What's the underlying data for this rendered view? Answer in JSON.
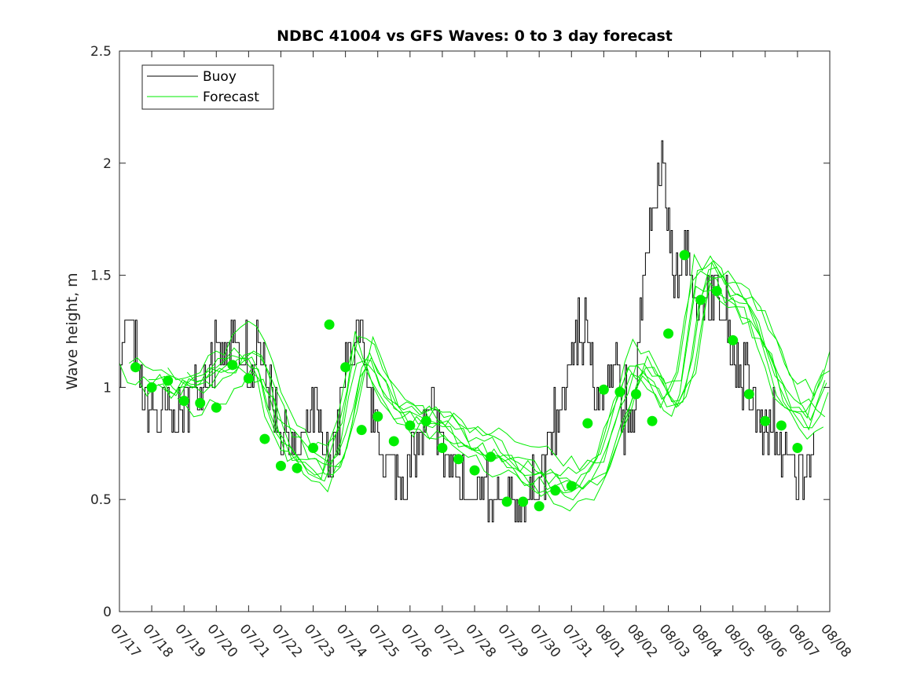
{
  "chart_data": {
    "type": "line",
    "title": "NDBC 41004 vs GFS Waves: 0 to 3 day forecast",
    "xlabel": "",
    "ylabel": "Wave height, m",
    "x_tick_labels": [
      "07/17",
      "07/18",
      "07/19",
      "07/20",
      "07/21",
      "07/22",
      "07/23",
      "07/24",
      "07/25",
      "07/26",
      "07/27",
      "07/28",
      "07/29",
      "07/30",
      "07/31",
      "08/01",
      "08/02",
      "08/03",
      "08/04",
      "08/05",
      "08/06",
      "08/07",
      "08/08"
    ],
    "xlim_days": [
      0,
      22
    ],
    "ylim": [
      0,
      2.5
    ],
    "y_ticks": [
      0,
      0.5,
      1,
      1.5,
      2,
      2.5
    ],
    "y_tick_labels": [
      "0",
      "0.5",
      "1",
      "1.5",
      "2",
      "2.5"
    ],
    "grid": false,
    "legend": {
      "placement": "top-left",
      "entries": [
        {
          "name": "Buoy",
          "color": "#000000"
        },
        {
          "name": "Forecast",
          "color": "#00ee00"
        }
      ]
    },
    "colors": {
      "buoy": "#000000",
      "forecast": "#00ee00"
    },
    "buoy_profile": {
      "x": [
        0,
        0.2,
        0.3,
        0.5,
        0.6,
        0.8,
        1.0,
        1.2,
        1.4,
        1.5,
        1.7,
        2.0,
        2.2,
        2.4,
        2.7,
        3.0,
        3.2,
        3.5,
        3.8,
        4.0,
        4.2,
        4.4,
        4.5,
        4.7,
        5.0,
        5.3,
        5.5,
        5.7,
        5.9,
        6.1,
        6.3,
        6.5,
        6.8,
        7.0,
        7.2,
        7.5,
        7.6,
        7.8,
        8.0,
        8.2,
        8.5,
        8.8,
        9.0,
        9.3,
        9.5,
        9.7,
        9.9,
        10.0,
        10.2,
        10.5,
        10.8,
        11.0,
        11.3,
        11.5,
        11.7,
        11.9,
        12.0,
        12.2,
        12.5,
        12.8,
        13.0,
        13.2,
        13.5,
        13.8,
        14.0,
        14.2,
        14.4,
        14.6,
        14.8,
        15.0,
        15.2,
        15.4,
        15.6,
        15.8,
        16.0,
        16.2,
        16.5,
        16.8,
        17.0,
        17.1,
        17.2,
        17.3,
        17.5,
        17.7,
        17.9,
        18.1,
        18.3,
        18.5,
        18.7,
        19.0,
        19.2,
        19.5,
        19.8,
        20.0,
        20.3,
        20.6,
        20.9,
        21.0,
        21.3,
        21.5
      ],
      "y": [
        1.15,
        1.25,
        1.3,
        1.2,
        1.0,
        0.95,
        0.9,
        0.85,
        0.9,
        0.9,
        0.85,
        0.9,
        0.95,
        1.0,
        1.05,
        1.1,
        1.15,
        1.2,
        1.1,
        1.05,
        1.05,
        1.2,
        1.1,
        0.95,
        0.8,
        0.75,
        0.7,
        0.75,
        0.85,
        0.9,
        0.7,
        0.65,
        0.8,
        1.1,
        1.2,
        1.2,
        1.05,
        0.9,
        0.75,
        0.7,
        0.65,
        0.6,
        0.6,
        0.75,
        0.85,
        0.9,
        0.8,
        0.7,
        0.65,
        0.6,
        0.55,
        0.55,
        0.5,
        0.45,
        0.45,
        0.45,
        0.45,
        0.45,
        0.5,
        0.55,
        0.6,
        0.65,
        0.8,
        1.0,
        1.15,
        1.2,
        1.2,
        1.1,
        1.0,
        0.95,
        1.0,
        1.1,
        0.8,
        0.85,
        1.0,
        1.5,
        1.8,
        2.05,
        1.7,
        1.55,
        1.45,
        1.5,
        1.6,
        1.55,
        1.4,
        1.3,
        1.45,
        1.4,
        1.3,
        1.2,
        1.05,
        0.95,
        0.85,
        0.8,
        0.75,
        0.7,
        0.65,
        0.6,
        0.7,
        0.8
      ]
    },
    "forecast_mean": {
      "x": [
        0,
        0.5,
        1.0,
        1.5,
        2.0,
        2.5,
        3.0,
        3.5,
        4.0,
        4.5,
        5.0,
        5.5,
        6.0,
        6.5,
        7.0,
        7.5,
        8.0,
        8.5,
        9.0,
        9.5,
        10.0,
        10.5,
        11.0,
        11.5,
        12.0,
        12.5,
        13.0,
        13.5,
        14.0,
        14.5,
        15.0,
        15.5,
        16.0,
        16.5,
        17.0,
        17.5,
        18.0,
        18.5,
        19.0,
        19.5,
        20.0,
        20.5,
        21.0,
        21.5,
        22.0
      ],
      "y": [
        1.1,
        1.05,
        1.02,
        1.02,
        1.0,
        1.0,
        1.05,
        1.1,
        1.15,
        1.05,
        0.8,
        0.72,
        0.65,
        0.62,
        0.8,
        1.2,
        1.05,
        0.9,
        0.85,
        0.86,
        0.82,
        0.8,
        0.74,
        0.72,
        0.68,
        0.64,
        0.6,
        0.58,
        0.56,
        0.58,
        0.65,
        0.9,
        1.1,
        1.05,
        0.9,
        1.0,
        1.5,
        1.5,
        1.4,
        1.35,
        1.2,
        1.0,
        0.9,
        0.85,
        1.05
      ]
    },
    "forecast_spread": [
      0,
      0.06,
      -0.05,
      0.1,
      -0.08,
      0.12,
      -0.1,
      0.03
    ],
    "forecast_run_count": 8,
    "forecast_markers": {
      "x": [
        0.5,
        1,
        1.5,
        2,
        2.5,
        3,
        3.5,
        4,
        4.5,
        5,
        5.5,
        6,
        6.5,
        7,
        7.5,
        8,
        8.5,
        9,
        9.5,
        10,
        10.5,
        11,
        11.5,
        12,
        12.5,
        13,
        13.5,
        14,
        14.5,
        15,
        15.5,
        16,
        16.5,
        17,
        17.5,
        18,
        18.5,
        19,
        19.5,
        20,
        20.5,
        21
      ],
      "y": [
        1.09,
        1.0,
        1.03,
        0.94,
        0.93,
        0.91,
        1.1,
        1.04,
        0.77,
        0.65,
        0.64,
        0.73,
        1.28,
        1.09,
        0.81,
        0.87,
        0.76,
        0.83,
        0.85,
        0.73,
        0.68,
        0.63,
        0.69,
        0.49,
        0.49,
        0.47,
        0.54,
        0.56,
        0.84,
        0.99,
        0.98,
        0.97,
        0.85,
        1.24,
        1.59,
        1.39,
        1.43,
        1.21,
        0.97,
        0.85,
        0.83,
        0.73
      ]
    }
  }
}
